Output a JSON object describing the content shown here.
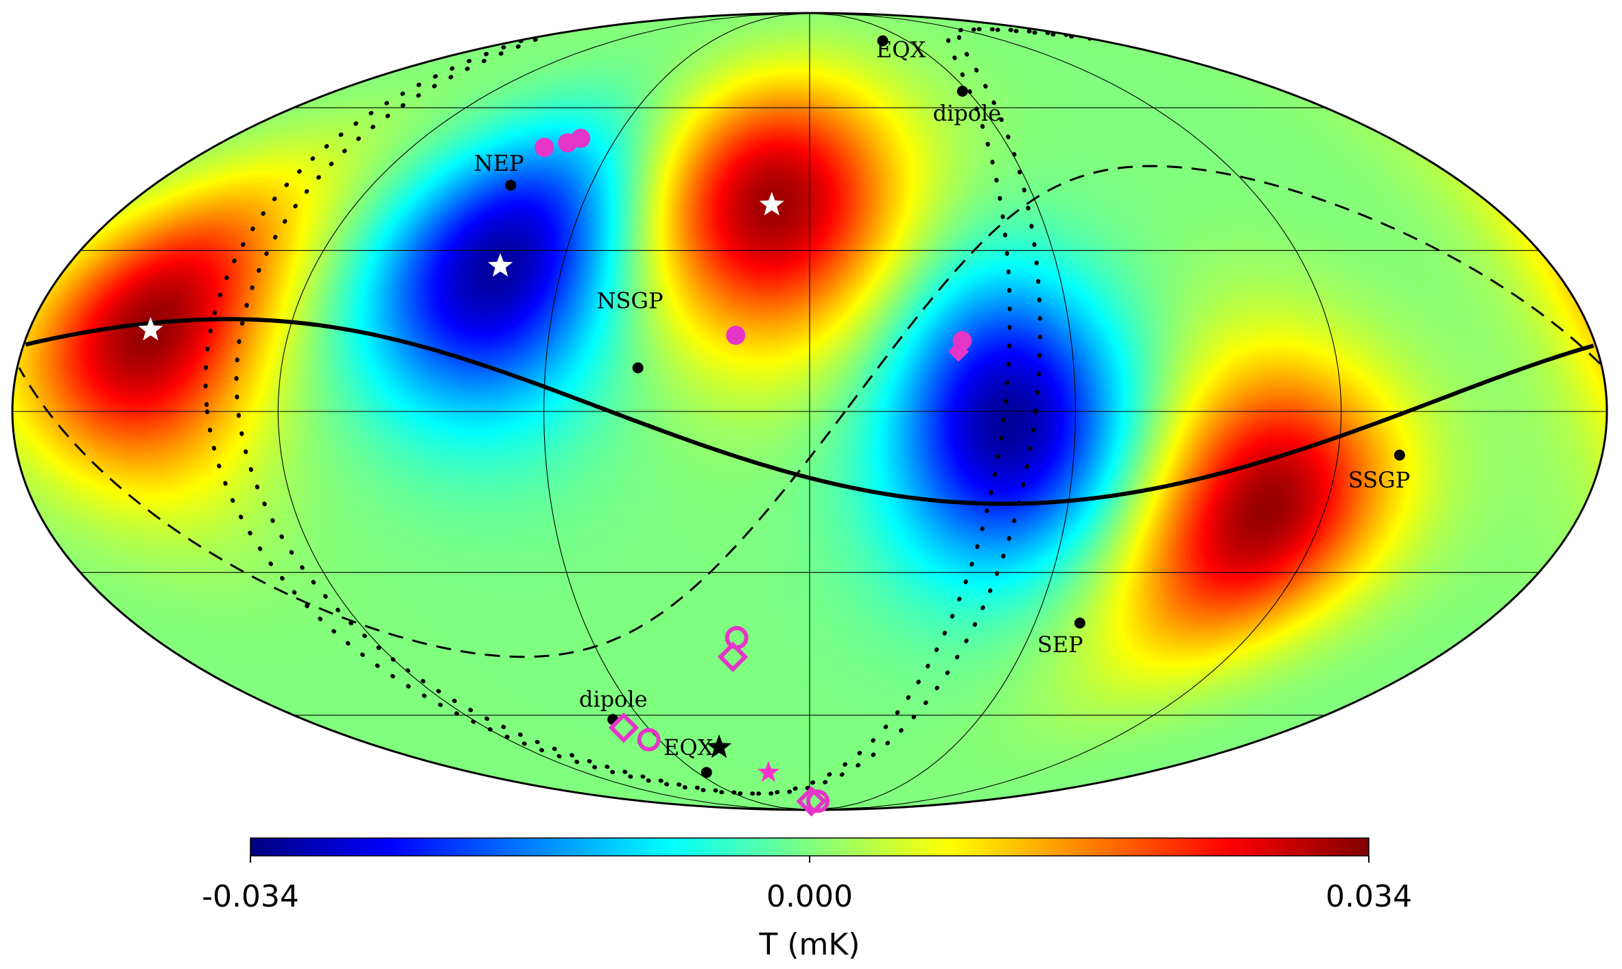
{
  "map": {
    "projection": "mollweide",
    "colormap": "jet",
    "labels": [
      {
        "id": "label-neP",
        "text": "NEP",
        "lon": 88,
        "lat": 46
      },
      {
        "id": "label-nsgp",
        "text": "NSGP",
        "lon": 42,
        "lat": 19
      },
      {
        "id": "label-eqx-top",
        "text": "EQX",
        "lon": -45,
        "lat": 73
      },
      {
        "id": "label-dipole-top",
        "text": "dipole",
        "lon": -52,
        "lat": 57
      },
      {
        "id": "label-ssgp",
        "text": "SSGP",
        "lon": -131,
        "lat": -14
      },
      {
        "id": "label-sep",
        "text": "SEP",
        "lon": -71,
        "lat": -46
      },
      {
        "id": "label-dipole-bottom",
        "text": "dipole",
        "lon": 66,
        "lat": -58
      },
      {
        "id": "label-eqx-bottom",
        "text": "EQX",
        "lon": 54,
        "lat": -70
      }
    ],
    "points": [
      {
        "name": "neP-point",
        "lon": 82,
        "lat": 43
      },
      {
        "name": "nsgp-point",
        "lon": 39,
        "lat": 8
      },
      {
        "name": "eqx-top-point",
        "lon": -45,
        "lat": 78
      },
      {
        "name": "dipole-top-point",
        "lon": -58,
        "lat": 64
      },
      {
        "name": "ssgp-point",
        "lon": -134,
        "lat": -8
      },
      {
        "name": "sep-point",
        "lon": -72,
        "lat": -40
      },
      {
        "name": "dipole-bottom-point",
        "lon": 70,
        "lat": -61
      },
      {
        "name": "eqx-bottom-point",
        "lon": 55,
        "lat": -75
      }
    ],
    "white_stars": [
      {
        "lon": 152,
        "lat": 15
      },
      {
        "lon": 75,
        "lat": 27
      },
      {
        "lon": 10,
        "lat": 39
      }
    ],
    "black_star": {
      "lon": 38,
      "lat": -68
    },
    "magenta_star": {
      "lon": 22,
      "lat": -75
    },
    "magenta_markers": [
      {
        "shape": "filled-circle",
        "lon": 80,
        "lat": 51
      },
      {
        "shape": "filled-circle",
        "lon": 74,
        "lat": 52
      },
      {
        "shape": "filled-circle",
        "lon": 71,
        "lat": 53
      },
      {
        "shape": "filled-circle",
        "lon": 17,
        "lat": 14
      },
      {
        "shape": "filled-circle",
        "lon": -35,
        "lat": 13
      },
      {
        "shape": "filled-diamond",
        "lon": -34,
        "lat": 11
      },
      {
        "shape": "circle",
        "lon": 20,
        "lat": -43
      },
      {
        "shape": "diamond",
        "lon": 22,
        "lat": -47
      },
      {
        "shape": "diamond",
        "lon": 69,
        "lat": -63
      },
      {
        "shape": "circle",
        "lon": 64,
        "lat": -66
      },
      {
        "shape": "diamond",
        "lon": -2,
        "lat": -85
      },
      {
        "shape": "circle",
        "lon": -9,
        "lat": -85
      }
    ]
  },
  "colorbar": {
    "colors": [
      "#000080",
      "#0000ff",
      "#00ffff",
      "#ffff00",
      "#ff0000",
      "#800000"
    ],
    "tick_labels": [
      "-0.034",
      "0.000",
      "0.034"
    ],
    "ticks": [
      -0.034,
      0.0,
      0.034
    ],
    "range": [
      -0.034,
      0.034
    ],
    "unit_label": "T (mK)"
  }
}
